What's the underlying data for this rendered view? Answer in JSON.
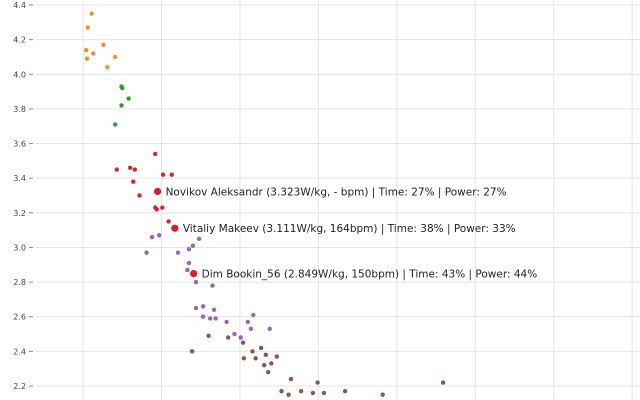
{
  "chart_data": {
    "type": "scatter",
    "title": "",
    "xlabel": "",
    "ylabel": "",
    "ylim": [
      2.15,
      4.45
    ],
    "xlim": [
      0.04,
      0.81
    ],
    "grid": true,
    "y_ticks": [
      2.2,
      2.4,
      2.6,
      2.8,
      3.0,
      3.2,
      3.4,
      3.6,
      3.8,
      4.0,
      4.2,
      4.4
    ],
    "y_tick_labels": [
      "2.2",
      "2.4",
      "2.6",
      "2.8",
      "3.0",
      "3.2",
      "3.4",
      "3.6",
      "3.8",
      "4.0",
      "4.2",
      "4.4"
    ],
    "x_gridlines": [
      0.1,
      0.2,
      0.3,
      0.4,
      0.5,
      0.6,
      0.7,
      0.8
    ],
    "series": [
      {
        "color": "#f28e2b",
        "points": [
          {
            "x": 0.111,
            "y": 4.35
          },
          {
            "x": 0.106,
            "y": 4.27
          },
          {
            "x": 0.104,
            "y": 4.14
          },
          {
            "x": 0.113,
            "y": 4.12
          },
          {
            "x": 0.105,
            "y": 4.09
          },
          {
            "x": 0.126,
            "y": 4.17
          },
          {
            "x": 0.141,
            "y": 4.1
          },
          {
            "x": 0.131,
            "y": 4.04
          }
        ]
      },
      {
        "color": "#2ca02c",
        "points": [
          {
            "x": 0.149,
            "y": 3.93
          },
          {
            "x": 0.15,
            "y": 3.92
          },
          {
            "x": 0.158,
            "y": 3.86
          },
          {
            "x": 0.149,
            "y": 3.82
          },
          {
            "x": 0.141,
            "y": 3.71
          }
        ]
      },
      {
        "color": "#d62728",
        "points": [
          {
            "x": 0.143,
            "y": 3.45
          },
          {
            "x": 0.16,
            "y": 3.46
          },
          {
            "x": 0.166,
            "y": 3.45
          },
          {
            "x": 0.164,
            "y": 3.38
          },
          {
            "x": 0.172,
            "y": 3.3
          },
          {
            "x": 0.192,
            "y": 3.54
          },
          {
            "x": 0.202,
            "y": 3.42
          },
          {
            "x": 0.213,
            "y": 3.42
          },
          {
            "x": 0.192,
            "y": 3.23
          },
          {
            "x": 0.194,
            "y": 3.22
          },
          {
            "x": 0.201,
            "y": 3.23
          },
          {
            "x": 0.209,
            "y": 3.15
          },
          {
            "x": 0.195,
            "y": 3.323
          },
          {
            "x": 0.217,
            "y": 3.111
          },
          {
            "x": 0.241,
            "y": 2.849
          }
        ]
      },
      {
        "color": "#9467bd",
        "points": [
          {
            "x": 0.181,
            "y": 2.97
          },
          {
            "x": 0.188,
            "y": 3.06
          },
          {
            "x": 0.197,
            "y": 3.07
          },
          {
            "x": 0.221,
            "y": 2.97
          },
          {
            "x": 0.235,
            "y": 2.91
          },
          {
            "x": 0.233,
            "y": 2.87
          },
          {
            "x": 0.235,
            "y": 2.99
          },
          {
            "x": 0.24,
            "y": 3.01
          },
          {
            "x": 0.248,
            "y": 3.05
          },
          {
            "x": 0.244,
            "y": 2.8
          },
          {
            "x": 0.265,
            "y": 2.78
          },
          {
            "x": 0.244,
            "y": 2.65
          },
          {
            "x": 0.253,
            "y": 2.66
          },
          {
            "x": 0.253,
            "y": 2.6
          },
          {
            "x": 0.262,
            "y": 2.59
          },
          {
            "x": 0.267,
            "y": 2.64
          },
          {
            "x": 0.269,
            "y": 2.59
          },
          {
            "x": 0.283,
            "y": 2.57
          },
          {
            "x": 0.293,
            "y": 2.5
          },
          {
            "x": 0.31,
            "y": 2.57
          },
          {
            "x": 0.314,
            "y": 2.53
          },
          {
            "x": 0.317,
            "y": 2.61
          },
          {
            "x": 0.338,
            "y": 2.53
          },
          {
            "x": 0.301,
            "y": 2.48
          }
        ]
      },
      {
        "color": "#8c564b",
        "points": [
          {
            "x": 0.239,
            "y": 2.4
          },
          {
            "x": 0.26,
            "y": 2.49
          },
          {
            "x": 0.285,
            "y": 2.48
          },
          {
            "x": 0.304,
            "y": 2.45
          },
          {
            "x": 0.305,
            "y": 2.36
          },
          {
            "x": 0.316,
            "y": 2.4
          },
          {
            "x": 0.32,
            "y": 2.36
          },
          {
            "x": 0.327,
            "y": 2.42
          },
          {
            "x": 0.331,
            "y": 2.32
          },
          {
            "x": 0.333,
            "y": 2.38
          },
          {
            "x": 0.336,
            "y": 2.28
          },
          {
            "x": 0.34,
            "y": 2.33
          },
          {
            "x": 0.347,
            "y": 2.37
          },
          {
            "x": 0.353,
            "y": 2.17
          },
          {
            "x": 0.365,
            "y": 2.24
          },
          {
            "x": 0.362,
            "y": 2.15
          },
          {
            "x": 0.378,
            "y": 2.17
          },
          {
            "x": 0.393,
            "y": 2.16
          },
          {
            "x": 0.399,
            "y": 2.22
          },
          {
            "x": 0.407,
            "y": 2.16
          },
          {
            "x": 0.434,
            "y": 2.17
          },
          {
            "x": 0.559,
            "y": 2.22
          },
          {
            "x": 0.482,
            "y": 2.15
          }
        ]
      }
    ],
    "annotations": [
      {
        "x": 0.195,
        "y": 3.323,
        "color": "#e31a1c",
        "label": "Novikov Aleksandr (3.323W/kg, - bpm) | Time: 27% | Power: 27%"
      },
      {
        "x": 0.217,
        "y": 3.111,
        "color": "#e31a1c",
        "label": "Vitaliy Makeev (3.111W/kg, 164bpm) | Time: 38% | Power: 33%"
      },
      {
        "x": 0.241,
        "y": 2.849,
        "color": "#e31a1c",
        "label": "Dim Bookin_56 (2.849W/kg, 150bpm) | Time: 43% | Power: 44%"
      }
    ]
  }
}
